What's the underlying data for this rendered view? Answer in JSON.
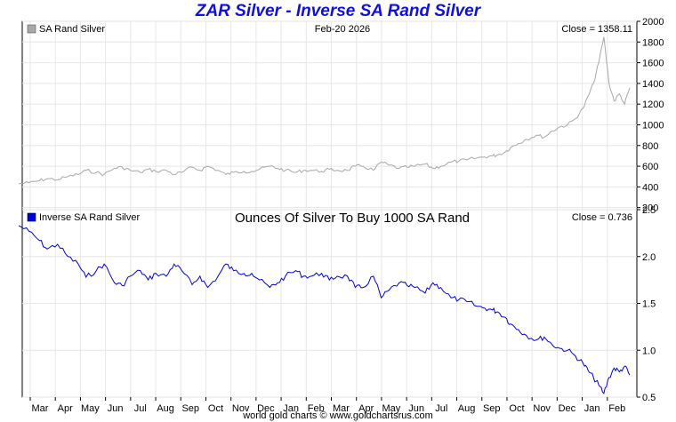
{
  "title": "ZAR Silver - Inverse SA Rand Silver",
  "footer": "world gold charts © www.goldchartsrus.com",
  "colors": {
    "top_series": "#a8a8a8",
    "bottom_series": "#0000dd",
    "grid": "#e6e6e6",
    "title": "#1010e0"
  },
  "chart_data": [
    {
      "type": "line",
      "panel": "top",
      "legend": "SA Rand Silver",
      "date_label": "Feb-20  2026",
      "close_label": "Close = 1358.11",
      "ylim": [
        180,
        2000
      ],
      "yticks": [
        200,
        400,
        600,
        800,
        1000,
        1200,
        1400,
        1600,
        1800,
        2000
      ],
      "x_months": [
        "Mar",
        "Apr",
        "May",
        "Jun",
        "Jul",
        "Aug",
        "Sep",
        "Oct",
        "Nov",
        "Dec",
        "Jan",
        "Feb",
        "Mar",
        "Apr",
        "May",
        "Jun",
        "Jul",
        "Aug",
        "Sep",
        "Oct",
        "Nov",
        "Dec",
        "Jan",
        "Feb"
      ],
      "series": [
        {
          "name": "SA Rand Silver",
          "x": [
            0,
            0.4,
            0.8,
            1.1,
            1.5,
            1.9,
            2.3,
            2.6,
            3.0,
            3.3,
            3.7,
            4.0,
            4.3,
            4.7,
            5.0,
            5.3,
            5.7,
            6.0,
            6.3,
            6.7,
            7.0,
            7.3,
            7.7,
            8.0,
            8.3,
            8.7,
            9.0,
            9.3,
            9.7,
            10.0,
            10.3,
            10.7,
            11.0,
            11.3,
            11.7,
            12.0,
            12.3,
            12.7,
            13.0,
            13.3,
            13.7,
            14.0,
            14.3,
            14.7,
            15.0,
            15.3,
            15.7,
            16.0,
            16.3,
            16.7,
            17.0,
            17.3,
            17.7,
            18.0,
            18.3,
            18.5,
            18.8,
            19.0,
            19.3,
            19.6,
            20.0,
            20.3,
            20.6,
            20.9,
            21.2,
            21.5,
            21.8,
            22.0,
            22.2,
            22.4,
            22.6,
            22.8,
            23.0,
            23.2,
            23.4,
            23.6
          ],
          "values": [
            430,
            440,
            460,
            480,
            470,
            500,
            520,
            560,
            540,
            520,
            580,
            590,
            560,
            540,
            570,
            550,
            560,
            520,
            540,
            590,
            560,
            600,
            560,
            520,
            540,
            550,
            550,
            570,
            600,
            580,
            560,
            540,
            560,
            560,
            550,
            570,
            560,
            560,
            600,
            600,
            560,
            640,
            610,
            580,
            590,
            600,
            620,
            580,
            600,
            640,
            650,
            660,
            680,
            690,
            700,
            710,
            740,
            780,
            820,
            860,
            900,
            880,
            940,
            980,
            1000,
            1060,
            1160,
            1280,
            1400,
            1600,
            1850,
            1400,
            1230,
            1300,
            1200,
            1358
          ]
        }
      ]
    },
    {
      "type": "line",
      "panel": "bottom",
      "legend": "Inverse SA Rand Silver",
      "title": "Ounces Of Silver To Buy 1000 SA Rand",
      "close_label": "Close = 0.736",
      "ylim": [
        0.5,
        2.5
      ],
      "yticks": [
        0.5,
        1.0,
        1.5,
        2.0,
        2.5
      ],
      "x_months": [
        "Mar",
        "Apr",
        "May",
        "Jun",
        "Jul",
        "Aug",
        "Sep",
        "Oct",
        "Nov",
        "Dec",
        "Jan",
        "Feb",
        "Mar",
        "Apr",
        "May",
        "Jun",
        "Jul",
        "Aug",
        "Sep",
        "Oct",
        "Nov",
        "Dec",
        "Jan",
        "Feb"
      ],
      "series": [
        {
          "name": "Inverse SA Rand Silver",
          "x": [
            0,
            0.4,
            0.8,
            1.1,
            1.5,
            1.9,
            2.3,
            2.6,
            3.0,
            3.3,
            3.7,
            4.0,
            4.3,
            4.7,
            5.0,
            5.3,
            5.7,
            6.0,
            6.3,
            6.7,
            7.0,
            7.3,
            7.7,
            8.0,
            8.3,
            8.7,
            9.0,
            9.3,
            9.7,
            10.0,
            10.3,
            10.7,
            11.0,
            11.3,
            11.7,
            12.0,
            12.3,
            12.7,
            13.0,
            13.3,
            13.7,
            14.0,
            14.3,
            14.7,
            15.0,
            15.3,
            15.7,
            16.0,
            16.3,
            16.7,
            17.0,
            17.3,
            17.7,
            18.0,
            18.3,
            18.5,
            18.8,
            19.0,
            19.3,
            19.6,
            20.0,
            20.3,
            20.6,
            20.9,
            21.2,
            21.5,
            21.8,
            22.0,
            22.2,
            22.4,
            22.6,
            22.8,
            23.0,
            23.2,
            23.4,
            23.6
          ],
          "values": [
            2.33,
            2.27,
            2.17,
            2.08,
            2.13,
            2.0,
            1.92,
            1.78,
            1.85,
            1.92,
            1.72,
            1.69,
            1.79,
            1.85,
            1.75,
            1.82,
            1.79,
            1.92,
            1.85,
            1.7,
            1.79,
            1.67,
            1.79,
            1.92,
            1.85,
            1.82,
            1.82,
            1.75,
            1.67,
            1.72,
            1.79,
            1.85,
            1.79,
            1.79,
            1.82,
            1.75,
            1.79,
            1.79,
            1.67,
            1.67,
            1.79,
            1.56,
            1.64,
            1.72,
            1.69,
            1.67,
            1.61,
            1.72,
            1.67,
            1.56,
            1.54,
            1.52,
            1.47,
            1.45,
            1.43,
            1.41,
            1.35,
            1.28,
            1.22,
            1.16,
            1.11,
            1.14,
            1.06,
            1.02,
            1.0,
            0.94,
            0.86,
            0.78,
            0.71,
            0.63,
            0.54,
            0.71,
            0.81,
            0.77,
            0.83,
            0.736
          ]
        }
      ]
    }
  ]
}
